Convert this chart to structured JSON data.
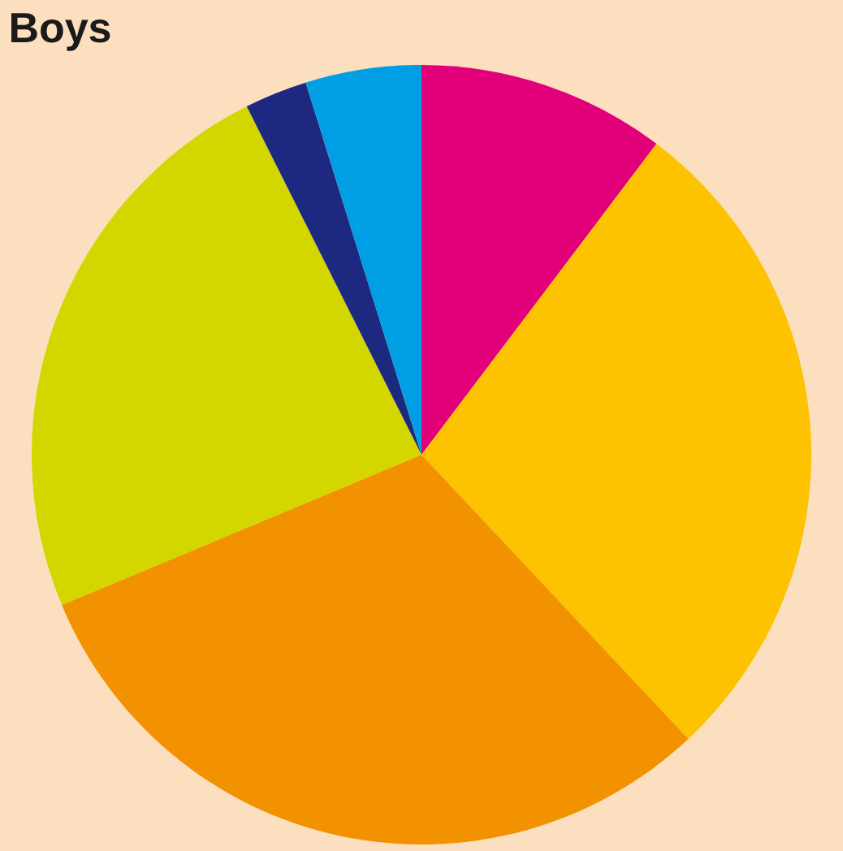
{
  "chart_data": {
    "type": "pie",
    "title": "Boys",
    "categories": [
      null,
      null,
      null,
      null,
      null,
      null
    ],
    "values": [
      10.3,
      27.7,
      30.7,
      23.9,
      2.6,
      4.8
    ],
    "colors": [
      "#e2007a",
      "#fdc300",
      "#f39200",
      "#d4d600",
      "#1d2981",
      "#009fe3"
    ],
    "legend": false
  }
}
